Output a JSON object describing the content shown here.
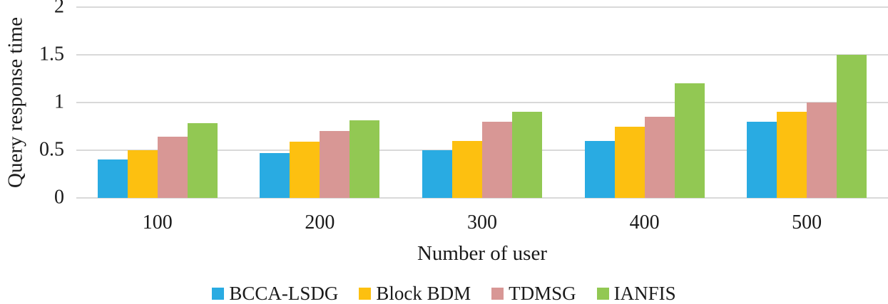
{
  "chart_data": {
    "type": "bar",
    "title": "",
    "xlabel": "Number of user",
    "ylabel": "Query response time",
    "categories": [
      "100",
      "200",
      "300",
      "400",
      "500"
    ],
    "series": [
      {
        "name": "BCCA-LSDG",
        "color": "#29ABE2",
        "values": [
          0.4,
          0.47,
          0.5,
          0.6,
          0.8
        ]
      },
      {
        "name": "Block BDM",
        "color": "#FDC010",
        "values": [
          0.5,
          0.59,
          0.6,
          0.75,
          0.9
        ]
      },
      {
        "name": "TDMSG",
        "color": "#D89795",
        "values": [
          0.64,
          0.7,
          0.8,
          0.85,
          1.0
        ]
      },
      {
        "name": "IANFIS",
        "color": "#92C853",
        "values": [
          0.78,
          0.81,
          0.9,
          1.2,
          1.5
        ]
      }
    ],
    "ylim": [
      0,
      2
    ],
    "yticks": [
      "0",
      "0.5",
      "1",
      "1.5",
      "2"
    ],
    "ytick_values": [
      0,
      0.5,
      1,
      1.5,
      2
    ],
    "grid": true,
    "legend_position": "bottom",
    "gridline_color": "#d9d9d9",
    "text_color": "#1a1a1a",
    "background_color": "#ffffff"
  }
}
